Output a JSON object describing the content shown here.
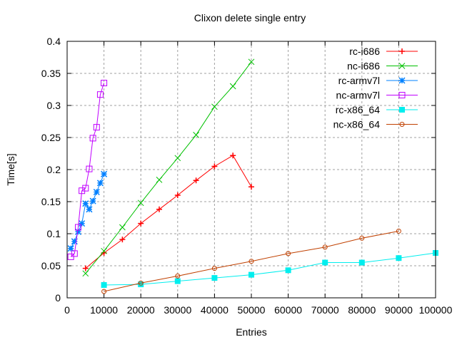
{
  "chart_data": {
    "type": "line",
    "title": "Clixon delete single entry",
    "xlabel": "Entries",
    "ylabel": "Time[s]",
    "xlim": [
      0,
      100000
    ],
    "ylim": [
      0,
      0.4
    ],
    "grid": true,
    "legend_position": "top-right",
    "x_ticks": [
      "0",
      "10000",
      "20000",
      "30000",
      "40000",
      "50000",
      "60000",
      "70000",
      "80000",
      "90000",
      "100000"
    ],
    "y_ticks": [
      "0",
      "0.05",
      "0.1",
      "0.15",
      "0.2",
      "0.25",
      "0.3",
      "0.35",
      "0.4"
    ],
    "series": [
      {
        "name": "rc-i686",
        "color": "#ff0000",
        "marker": "plus",
        "x": [
          5000,
          10000,
          15000,
          20000,
          25000,
          30000,
          35000,
          40000,
          45000,
          50000
        ],
        "y": [
          0.046,
          0.07,
          0.091,
          0.116,
          0.138,
          0.16,
          0.183,
          0.205,
          0.222,
          0.173
        ]
      },
      {
        "name": "nc-i686",
        "color": "#00c000",
        "marker": "cross",
        "x": [
          5000,
          10000,
          15000,
          20000,
          25000,
          30000,
          35000,
          40000,
          45000,
          50000
        ],
        "y": [
          0.038,
          0.073,
          0.11,
          0.148,
          0.184,
          0.218,
          0.254,
          0.298,
          0.33,
          0.368
        ]
      },
      {
        "name": "rc-armv7l",
        "color": "#0080ff",
        "marker": "star",
        "x": [
          1000,
          2000,
          3000,
          4000,
          5000,
          6000,
          7000,
          8000,
          9000,
          10000
        ],
        "y": [
          0.077,
          0.088,
          0.103,
          0.116,
          0.147,
          0.138,
          0.151,
          0.165,
          0.179,
          0.193
        ]
      },
      {
        "name": "nc-armv7l",
        "color": "#c000ff",
        "marker": "box",
        "x": [
          1000,
          2000,
          3000,
          4000,
          5000,
          6000,
          7000,
          8000,
          9000,
          10000
        ],
        "y": [
          0.064,
          0.069,
          0.11,
          0.167,
          0.171,
          0.201,
          0.249,
          0.266,
          0.317,
          0.335
        ]
      },
      {
        "name": "rc-x86_64",
        "color": "#00eeee",
        "marker": "filled-box",
        "x": [
          10000,
          20000,
          30000,
          40000,
          50000,
          60000,
          70000,
          80000,
          90000,
          100000
        ],
        "y": [
          0.02,
          0.021,
          0.026,
          0.031,
          0.036,
          0.043,
          0.055,
          0.055,
          0.062,
          0.07
        ]
      },
      {
        "name": "nc-x86_64",
        "color": "#c04000",
        "marker": "circle",
        "x": [
          10000,
          20000,
          30000,
          40000,
          50000,
          60000,
          70000,
          80000,
          90000
        ],
        "y": [
          0.01,
          0.023,
          0.034,
          0.046,
          0.057,
          0.069,
          0.079,
          0.093,
          0.104
        ]
      }
    ]
  }
}
